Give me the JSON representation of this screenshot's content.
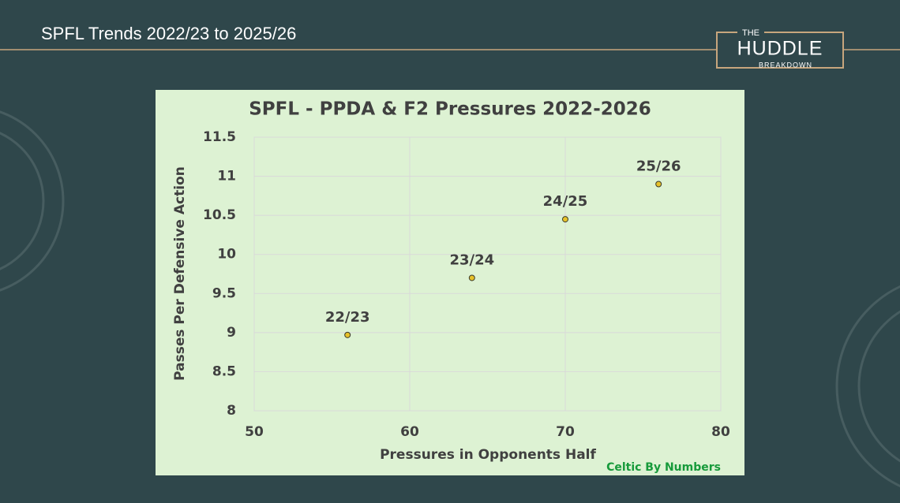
{
  "header": {
    "title": "SPFL Trends 2022/23 to 2025/26"
  },
  "logo": {
    "top": "THE",
    "main": "HUDDLE",
    "bottom": "BREAKDOWN"
  },
  "chart_data": {
    "type": "scatter",
    "title": "SPFL - PPDA & F2 Pressures 2022-2026",
    "x_label": "Pressures in Opponents Half",
    "y_label": "Passes Per Defensive Action",
    "source": "Celtic By Numbers",
    "point_labels": [
      "22/23",
      "23/24",
      "24/25",
      "25/26"
    ],
    "x": [
      56,
      64,
      70,
      76
    ],
    "values": [
      8.97,
      9.7,
      10.45,
      10.9
    ],
    "color": "#e6c12a",
    "xlim": [
      50,
      80
    ],
    "xticks": [
      50,
      60,
      70,
      80
    ],
    "ylim": [
      8,
      11.5
    ],
    "yticks": [
      8,
      8.5,
      9,
      9.5,
      10,
      10.5,
      11,
      11.5
    ],
    "grid": true
  }
}
